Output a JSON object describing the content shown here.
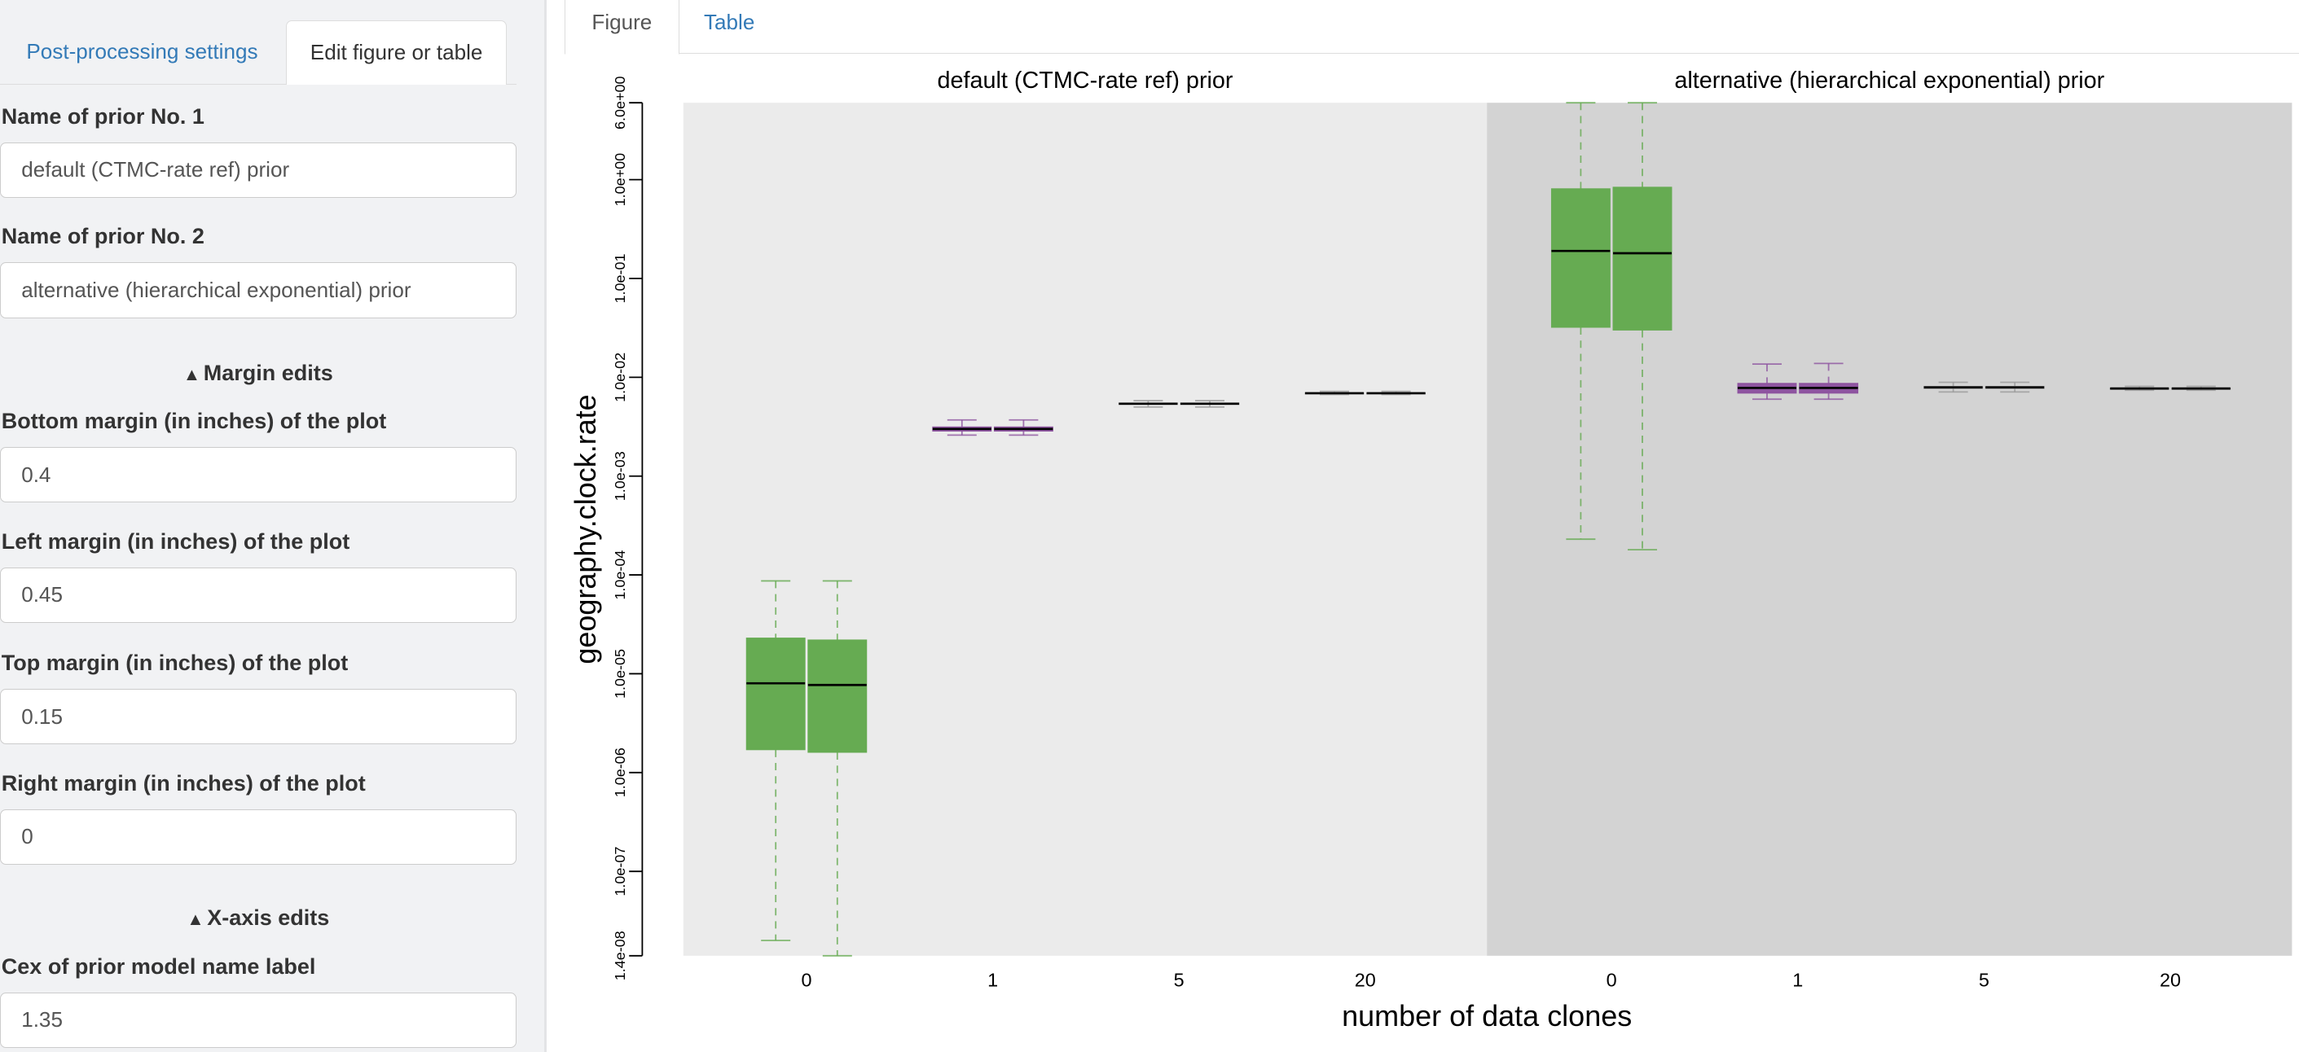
{
  "sidebar": {
    "tabs": [
      {
        "label": "Post-processing settings",
        "active": false
      },
      {
        "label": "Edit figure or table",
        "active": true
      }
    ],
    "fields": {
      "prior1": {
        "label": "Name of prior No. 1",
        "value": "default (CTMC-rate ref) prior"
      },
      "prior2": {
        "label": "Name of prior No. 2",
        "value": "alternative (hierarchical exponential) prior"
      },
      "bottom": {
        "label": "Bottom margin (in inches) of the plot",
        "value": "0.4"
      },
      "left": {
        "label": "Left margin (in inches) of the plot",
        "value": "0.45"
      },
      "top": {
        "label": "Top margin (in inches) of the plot",
        "value": "0.15"
      },
      "right": {
        "label": "Right margin (in inches) of the plot",
        "value": "0"
      },
      "cex": {
        "label": "Cex of prior model name label",
        "value": "1.35"
      }
    },
    "sections": {
      "margin": "Margin edits",
      "xaxis": "X-axis edits",
      "chevron_icon": "chevron-up-icon"
    }
  },
  "main": {
    "tabs": [
      {
        "label": "Figure",
        "active": true
      },
      {
        "label": "Table",
        "active": false
      }
    ]
  },
  "chart_data": {
    "type": "boxplot",
    "ylabel": "geography.clock.rate",
    "xlabel": "number of data clones",
    "yscale": "log",
    "ylim": [
      1.4e-08,
      6.0
    ],
    "yticks": [
      6.0,
      1.0,
      0.1,
      0.01,
      0.001,
      0.0001,
      1e-05,
      1e-06,
      1e-07,
      1.4e-08
    ],
    "ytick_labels": [
      "6.0e+00",
      "1.0e+00",
      "1.0e-01",
      "1.0e-02",
      "1.0e-03",
      "1.0e-04",
      "1.0e-05",
      "1.0e-06",
      "1.0e-07",
      "1.4e-08"
    ],
    "categories": [
      "0",
      "1",
      "5",
      "20"
    ],
    "category_colors": {
      "0": "#66ab52",
      "1": "#8e54a0",
      "5": "#9a9a9a",
      "20": "#9a9a9a"
    },
    "panels": [
      {
        "title": "default (CTMC-rate ref) prior",
        "background": "#ebebeb",
        "boxes": [
          [
            {
              "low": 2e-08,
              "q1": 1.7e-06,
              "median": 8e-06,
              "q3": 2.3e-05,
              "high": 8.7e-05
            },
            {
              "low": 1.4e-08,
              "q1": 1.6e-06,
              "median": 7.7e-06,
              "q3": 2.2e-05,
              "high": 8.7e-05
            }
          ],
          [
            {
              "low": 0.0026,
              "q1": 0.00285,
              "median": 0.003,
              "q3": 0.00315,
              "high": 0.0037
            },
            {
              "low": 0.0026,
              "q1": 0.00285,
              "median": 0.003,
              "q3": 0.00315,
              "high": 0.0037
            }
          ],
          [
            {
              "low": 0.005,
              "q1": 0.0053,
              "median": 0.0054,
              "q3": 0.0055,
              "high": 0.0058
            },
            {
              "low": 0.005,
              "q1": 0.0053,
              "median": 0.0054,
              "q3": 0.0055,
              "high": 0.0058
            }
          ],
          [
            {
              "low": 0.0067,
              "q1": 0.0068,
              "median": 0.0069,
              "q3": 0.007,
              "high": 0.0072
            },
            {
              "low": 0.0067,
              "q1": 0.0068,
              "median": 0.0069,
              "q3": 0.007,
              "high": 0.0072
            }
          ]
        ]
      },
      {
        "title": "alternative (hierarchical exponential) prior",
        "background": "#d3d3d3",
        "boxes": [
          [
            {
              "low": 0.00023,
              "q1": 0.032,
              "median": 0.19,
              "q3": 0.81,
              "high": 6.0
            },
            {
              "low": 0.00018,
              "q1": 0.03,
              "median": 0.18,
              "q3": 0.84,
              "high": 6.0
            }
          ],
          [
            {
              "low": 0.006,
              "q1": 0.0069,
              "median": 0.0078,
              "q3": 0.0087,
              "high": 0.0136
            },
            {
              "low": 0.006,
              "q1": 0.0069,
              "median": 0.0078,
              "q3": 0.0087,
              "high": 0.0138
            }
          ],
          [
            {
              "low": 0.0071,
              "q1": 0.0077,
              "median": 0.0079,
              "q3": 0.0081,
              "high": 0.0089
            },
            {
              "low": 0.0071,
              "q1": 0.0077,
              "median": 0.0079,
              "q3": 0.0081,
              "high": 0.0089
            }
          ],
          [
            {
              "low": 0.0074,
              "q1": 0.0076,
              "median": 0.0077,
              "q3": 0.0078,
              "high": 0.0081
            },
            {
              "low": 0.0074,
              "q1": 0.0076,
              "median": 0.0077,
              "q3": 0.0078,
              "high": 0.0081
            }
          ]
        ]
      }
    ]
  }
}
